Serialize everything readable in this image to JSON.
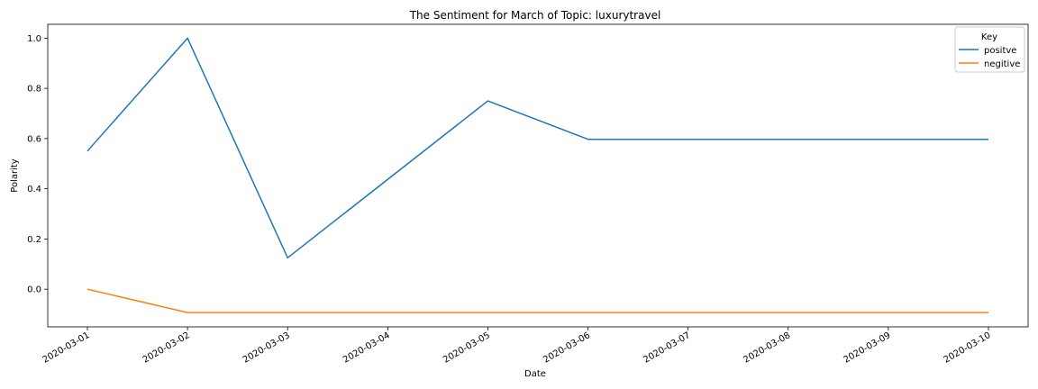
{
  "chart_data": {
    "type": "line",
    "title": "The Sentiment for March of Topic: luxurytravel",
    "xlabel": "Date",
    "ylabel": "Polarity",
    "x": [
      "2020-03-01",
      "2020-03-02",
      "2020-03-03",
      "2020-03-04",
      "2020-03-05",
      "2020-03-06",
      "2020-03-07",
      "2020-03-08",
      "2020-03-09",
      "2020-03-10"
    ],
    "xticks": [
      "2020-03-01",
      "2020-03-02",
      "2020-03-03",
      "2020-03-04",
      "2020-03-05",
      "2020-03-06",
      "2020-03-07",
      "2020-03-08",
      "2020-03-09",
      "2020-03-10"
    ],
    "yticks": [
      "0.0",
      "0.2",
      "0.4",
      "0.6",
      "0.8",
      "1.0"
    ],
    "ylim": [
      -0.15,
      1.055
    ],
    "grid": false,
    "legend": {
      "title": "Key",
      "placement": "top-right"
    },
    "series": [
      {
        "name": "positve",
        "color": "#1f77b4",
        "points": [
          {
            "x": "2020-03-01",
            "y": 0.55
          },
          {
            "x": "2020-03-02",
            "y": 1.0
          },
          {
            "x": "2020-03-03",
            "y": 0.125
          },
          {
            "x": "2020-03-05",
            "y": 0.75
          },
          {
            "x": "2020-03-06",
            "y": 0.597
          },
          {
            "x": "2020-03-10",
            "y": 0.597
          }
        ]
      },
      {
        "name": "negitive",
        "color": "#ff7f0e",
        "points": [
          {
            "x": "2020-03-01",
            "y": 0.0
          },
          {
            "x": "2020-03-02",
            "y": -0.093
          },
          {
            "x": "2020-03-10",
            "y": -0.093
          }
        ]
      }
    ]
  }
}
